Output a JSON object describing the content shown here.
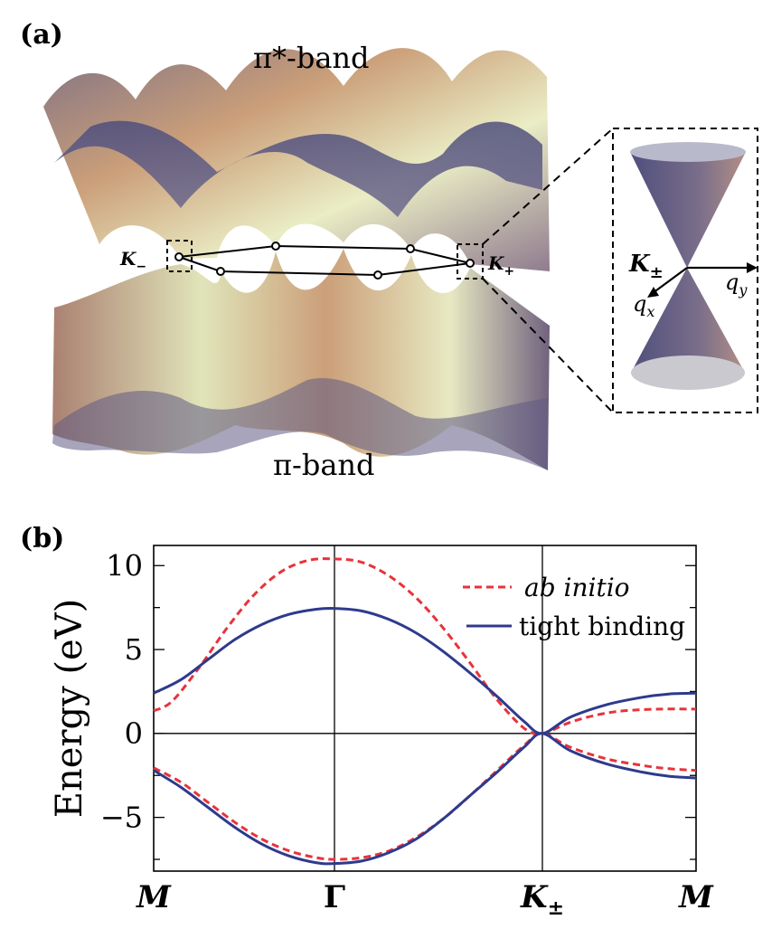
{
  "panel_a": {
    "label": "(a)",
    "pi_star_label": "π*-band",
    "pi_label": "π-band",
    "k_minus": "K",
    "k_minus_sub": "−",
    "k_plus": "K",
    "k_plus_sub": "+",
    "inset_k": "K",
    "inset_k_sub": "±",
    "qx": "q",
    "qx_sub": "x",
    "qy": "q",
    "qy_sub": "y"
  },
  "panel_b": {
    "label": "(b)"
  },
  "colors": {
    "ab_initio": "#e8333a",
    "tight_binding": "#2e3a8c",
    "surface_warm": "#c89a72",
    "surface_cool": "#5a5a86",
    "surface_light": "#e9ecc2"
  },
  "chart_data": {
    "type": "line",
    "title": "",
    "xlabel": "",
    "ylabel": "Energy (eV)",
    "x_ticks": [
      "M",
      "Γ",
      "K",
      "M"
    ],
    "x_tick_subscripts": [
      "",
      "",
      "±",
      ""
    ],
    "x": [
      0,
      1,
      2,
      3
    ],
    "ylim": [
      -8.2,
      11.2
    ],
    "y_ticks": [
      -5,
      0,
      5,
      10
    ],
    "y_tick_labels": [
      "−5",
      "0",
      "5",
      "10"
    ],
    "grid": false,
    "legend_position": "top-right",
    "series": [
      {
        "name": "ab initio",
        "style": "dashed",
        "color": "#e8333a",
        "band": "upper",
        "points": [
          [
            0.0,
            1.35
          ],
          [
            0.1,
            1.9
          ],
          [
            0.25,
            3.9
          ],
          [
            0.4,
            6.2
          ],
          [
            0.55,
            8.2
          ],
          [
            0.7,
            9.6
          ],
          [
            0.85,
            10.3
          ],
          [
            1.0,
            10.4
          ],
          [
            1.15,
            10.2
          ],
          [
            1.3,
            9.4
          ],
          [
            1.45,
            8.1
          ],
          [
            1.6,
            6.3
          ],
          [
            1.75,
            4.2
          ],
          [
            1.9,
            2.0
          ],
          [
            2.05,
            0.3
          ],
          [
            2.15,
            0.0
          ],
          [
            2.3,
            0.65
          ],
          [
            2.45,
            1.1
          ],
          [
            2.6,
            1.35
          ],
          [
            2.8,
            1.45
          ],
          [
            3.0,
            1.45
          ]
        ]
      },
      {
        "name": "ab initio",
        "style": "dashed",
        "color": "#e8333a",
        "band": "lower",
        "points": [
          [
            0.0,
            -2.05
          ],
          [
            0.15,
            -2.9
          ],
          [
            0.3,
            -4.1
          ],
          [
            0.45,
            -5.3
          ],
          [
            0.6,
            -6.3
          ],
          [
            0.75,
            -7.0
          ],
          [
            0.9,
            -7.4
          ],
          [
            1.0,
            -7.5
          ],
          [
            1.15,
            -7.4
          ],
          [
            1.3,
            -7.0
          ],
          [
            1.45,
            -6.2
          ],
          [
            1.6,
            -5.1
          ],
          [
            1.75,
            -3.7
          ],
          [
            1.9,
            -2.2
          ],
          [
            2.05,
            -0.7
          ],
          [
            2.15,
            0.0
          ],
          [
            2.3,
            -0.8
          ],
          [
            2.5,
            -1.5
          ],
          [
            2.7,
            -1.9
          ],
          [
            2.85,
            -2.1
          ],
          [
            3.0,
            -2.2
          ]
        ]
      },
      {
        "name": "tight binding",
        "style": "solid",
        "color": "#2e3a8c",
        "band": "upper",
        "points": [
          [
            0.0,
            2.4
          ],
          [
            0.15,
            3.2
          ],
          [
            0.3,
            4.4
          ],
          [
            0.45,
            5.6
          ],
          [
            0.6,
            6.5
          ],
          [
            0.75,
            7.1
          ],
          [
            0.9,
            7.4
          ],
          [
            1.0,
            7.45
          ],
          [
            1.15,
            7.3
          ],
          [
            1.3,
            6.8
          ],
          [
            1.45,
            6.0
          ],
          [
            1.6,
            4.9
          ],
          [
            1.75,
            3.6
          ],
          [
            1.9,
            2.2
          ],
          [
            2.05,
            0.7
          ],
          [
            2.15,
            0.0
          ],
          [
            2.3,
            0.95
          ],
          [
            2.5,
            1.7
          ],
          [
            2.7,
            2.15
          ],
          [
            2.85,
            2.35
          ],
          [
            3.0,
            2.4
          ]
        ]
      },
      {
        "name": "tight binding",
        "style": "solid",
        "color": "#2e3a8c",
        "band": "lower",
        "points": [
          [
            0.0,
            -2.2
          ],
          [
            0.15,
            -3.2
          ],
          [
            0.3,
            -4.4
          ],
          [
            0.45,
            -5.6
          ],
          [
            0.6,
            -6.6
          ],
          [
            0.75,
            -7.3
          ],
          [
            0.9,
            -7.7
          ],
          [
            1.0,
            -7.75
          ],
          [
            1.15,
            -7.6
          ],
          [
            1.3,
            -7.1
          ],
          [
            1.45,
            -6.3
          ],
          [
            1.6,
            -5.1
          ],
          [
            1.75,
            -3.7
          ],
          [
            1.9,
            -2.3
          ],
          [
            2.05,
            -0.8
          ],
          [
            2.15,
            0.0
          ],
          [
            2.3,
            -1.0
          ],
          [
            2.5,
            -1.8
          ],
          [
            2.7,
            -2.3
          ],
          [
            2.85,
            -2.55
          ],
          [
            3.0,
            -2.65
          ]
        ]
      }
    ],
    "legend": [
      {
        "label_prefix": "ab initio",
        "label_suffix": "",
        "style": "dashed",
        "color": "#e8333a"
      },
      {
        "label_prefix": "",
        "label_suffix": "tight binding",
        "style": "solid",
        "color": "#2e3a8c"
      }
    ]
  }
}
